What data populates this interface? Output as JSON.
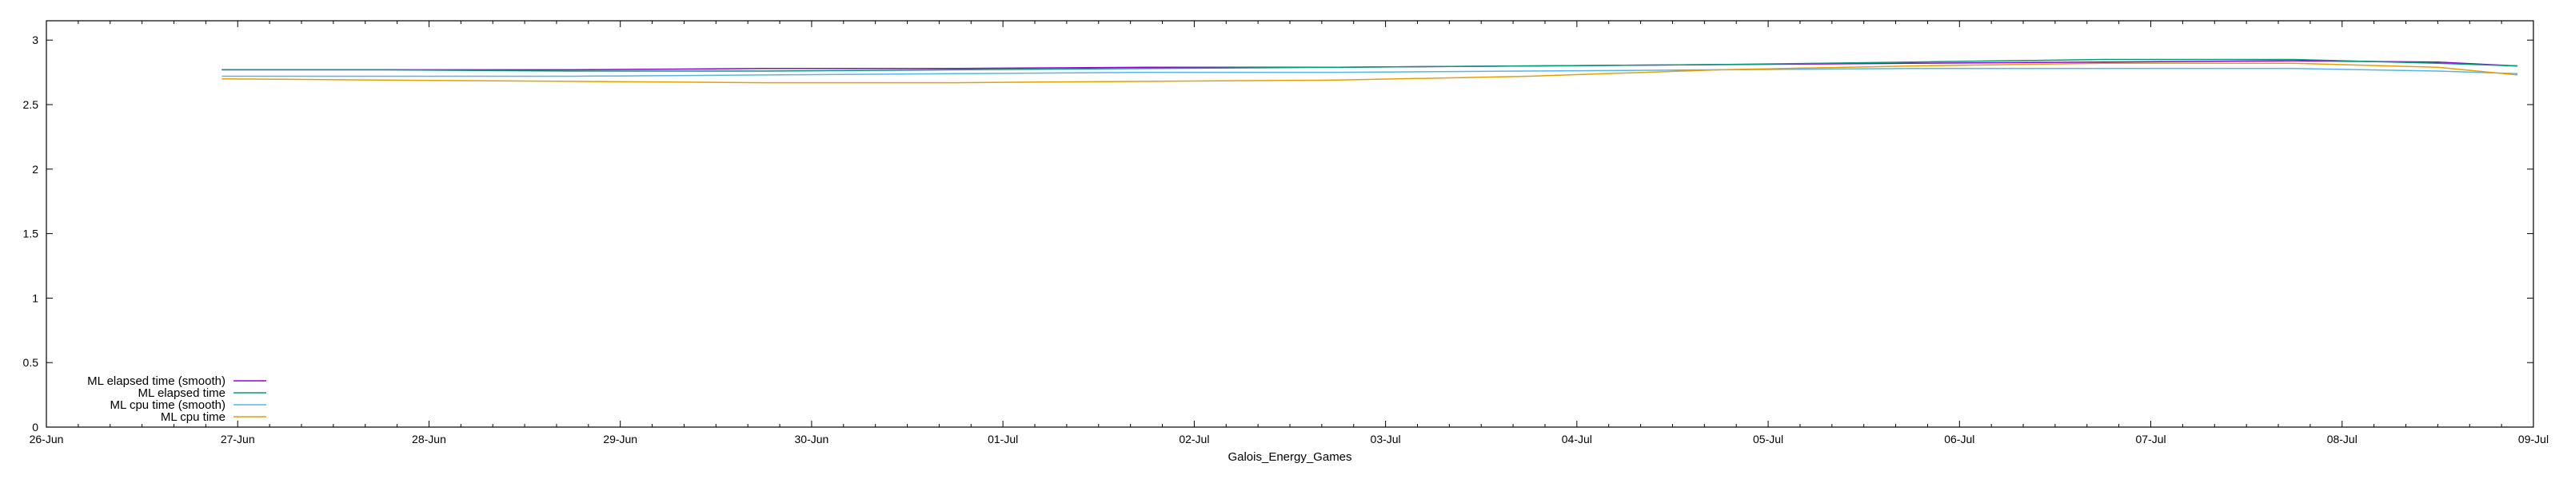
{
  "chart_data": {
    "type": "line",
    "title": "",
    "xlabel": "Galois_Energy_Games",
    "ylabel": "",
    "x_ticks": [
      "26-Jun",
      "27-Jun",
      "28-Jun",
      "29-Jun",
      "30-Jun",
      "01-Jul",
      "02-Jul",
      "03-Jul",
      "04-Jul",
      "05-Jul",
      "06-Jul",
      "07-Jul",
      "08-Jul",
      "09-Jul"
    ],
    "y_ticks": [
      "0",
      "0.5",
      "1",
      "1.5",
      "2",
      "2.5",
      "3"
    ],
    "xlim": [
      "26-Jun",
      "09-Jul"
    ],
    "ylim": [
      0,
      3.15
    ],
    "grid": false,
    "legend_position": "bottom-left",
    "series": [
      {
        "name": "ML elapsed time (smooth)",
        "color": "#9400d3",
        "x": [
          "26-Jun 22:00",
          "27-Jun 18:00",
          "28-Jun 18:00",
          "29-Jun 18:00",
          "30-Jun 18:00",
          "01-Jul 18:00",
          "02-Jul 18:00",
          "03-Jul 18:00",
          "04-Jul 18:00",
          "05-Jul 18:00",
          "06-Jul 18:00",
          "07-Jul 18:00",
          "08-Jul 12:00",
          "08-Jul 22:00"
        ],
        "y": [
          2.77,
          2.77,
          2.77,
          2.78,
          2.78,
          2.79,
          2.79,
          2.8,
          2.81,
          2.82,
          2.83,
          2.84,
          2.83,
          2.8
        ]
      },
      {
        "name": "ML elapsed time",
        "color": "#009e73",
        "x": [
          "26-Jun 22:00",
          "27-Jun 18:00",
          "28-Jun 18:00",
          "29-Jun 18:00",
          "30-Jun 18:00",
          "01-Jul 18:00",
          "02-Jul 18:00",
          "03-Jul 18:00",
          "04-Jul 18:00",
          "05-Jul 18:00",
          "06-Jul 18:00",
          "07-Jul 18:00",
          "08-Jul 12:00",
          "08-Jul 22:00"
        ],
        "y": [
          2.77,
          2.77,
          2.76,
          2.76,
          2.77,
          2.78,
          2.79,
          2.8,
          2.81,
          2.83,
          2.85,
          2.85,
          2.82,
          2.8
        ]
      },
      {
        "name": "ML cpu time (smooth)",
        "color": "#56b4e9",
        "x": [
          "26-Jun 22:00",
          "27-Jun 18:00",
          "28-Jun 18:00",
          "29-Jun 18:00",
          "30-Jun 18:00",
          "01-Jul 18:00",
          "02-Jul 18:00",
          "03-Jul 18:00",
          "04-Jul 18:00",
          "05-Jul 18:00",
          "06-Jul 18:00",
          "07-Jul 18:00",
          "08-Jul 12:00",
          "08-Jul 22:00"
        ],
        "y": [
          2.72,
          2.72,
          2.72,
          2.73,
          2.74,
          2.75,
          2.75,
          2.76,
          2.77,
          2.78,
          2.78,
          2.78,
          2.76,
          2.74
        ]
      },
      {
        "name": "ML cpu time",
        "color": "#e69f00",
        "x": [
          "26-Jun 22:00",
          "27-Jun 18:00",
          "28-Jun 18:00",
          "29-Jun 18:00",
          "30-Jun 18:00",
          "01-Jul 18:00",
          "02-Jul 18:00",
          "03-Jul 18:00",
          "04-Jul 18:00",
          "05-Jul 18:00",
          "06-Jul 18:00",
          "07-Jul 18:00",
          "08-Jul 12:00",
          "08-Jul 22:00"
        ],
        "y": [
          2.7,
          2.69,
          2.68,
          2.67,
          2.67,
          2.68,
          2.69,
          2.72,
          2.77,
          2.8,
          2.82,
          2.82,
          2.79,
          2.73
        ]
      }
    ]
  }
}
